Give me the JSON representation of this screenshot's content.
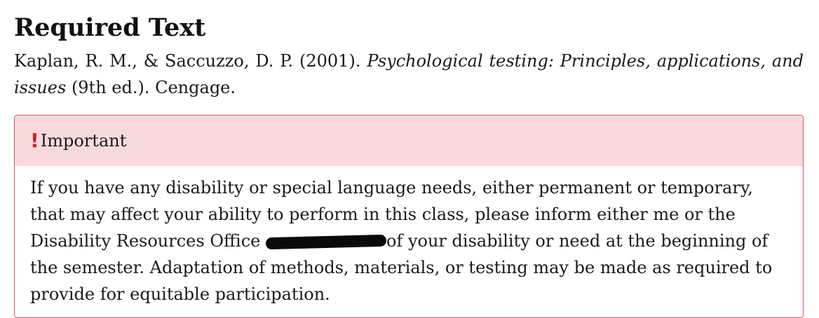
{
  "heading": "Required Text",
  "citation": {
    "authors": "Kaplan, R. M., & Saccuzzo, D. P. (2001).",
    "title": "Psychological testing: Principles, applications, and issues",
    "rest": "(9th ed.). Cengage."
  },
  "callout": {
    "type": "important",
    "icon": "exclamation-icon",
    "icon_glyph": "!",
    "accent_color": "#cc2129",
    "border_color": "#d8585e",
    "header_background": "#f8dadc",
    "title": "Important",
    "body_before_redaction": "If you have any disability or special language needs, either permanent or temporary, that may affect your ability to perform in this class, please inform either me or the Disability Resources Office ",
    "body_after_redaction": "of your disability or need at the beginning of the semester. Adaptation of methods, materials, or testing may be made as required to provide for equitable participation."
  }
}
